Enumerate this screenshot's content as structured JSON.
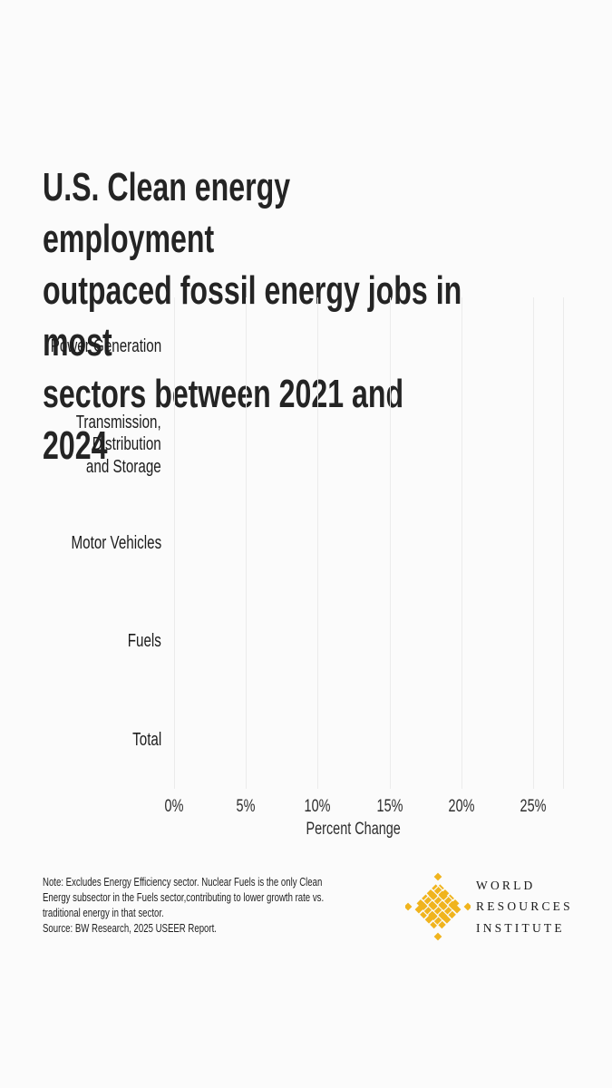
{
  "title": {
    "lines": [
      "U.S. Clean energy employment",
      "outpaced fossil energy jobs in most",
      "sectors between 2021 and 2024"
    ]
  },
  "chart": {
    "categories": [
      "Power Generation",
      "Transmission,\nDistribution\nand Storage",
      "Motor Vehicles",
      "Fuels",
      "Total"
    ],
    "x_ticks": [
      "0%",
      "5%",
      "10%",
      "15%",
      "20%",
      "25%"
    ],
    "x_axis_label": "Percent Change"
  },
  "chart_data": {
    "type": "bar",
    "orientation": "horizontal",
    "title": "U.S. Clean energy employment outpaced fossil energy jobs in most sectors between 2021 and 2024",
    "categories": [
      "Power Generation",
      "Transmission, Distribution and Storage",
      "Motor Vehicles",
      "Fuels",
      "Total"
    ],
    "series": [],
    "bars_rendered": false,
    "observation": "Plot area is empty in this frame; only axes and gridlines are drawn (animation start frame).",
    "xlabel": "Percent Change",
    "x_tick_labels": [
      "0%",
      "5%",
      "10%",
      "15%",
      "20%",
      "25%"
    ],
    "xlim_percent": [
      0,
      27
    ],
    "grid": "vertical-only",
    "legend": "none"
  },
  "footer": {
    "note": "Note: Excludes Energy Efficiency sector. Nuclear Fuels is the only Clean\nEnergy subsector in the Fuels sector,contributing to lower growth rate vs.\ntraditional energy in that sector.",
    "source": "Source: BW Research, 2025 USEER Report.",
    "logo": {
      "org_lines": [
        "WORLD",
        "RESOURCES",
        "INSTITUTE"
      ],
      "mark": "wri-woven-diamond"
    }
  },
  "colors": {
    "background": "#fbfbfb",
    "title_text": "#242424",
    "axis_text": "#2d2d2d",
    "gridline": "#ebebeb",
    "logo_gold": "#F0B41E"
  }
}
